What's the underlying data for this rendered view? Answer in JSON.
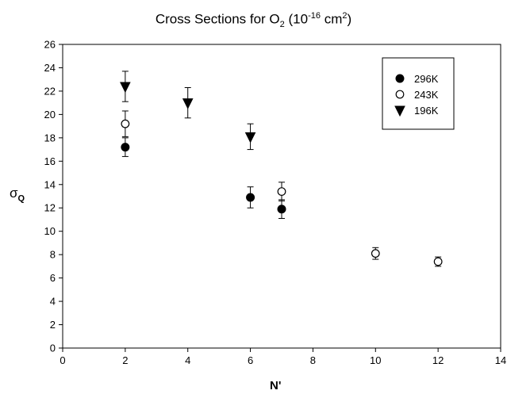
{
  "chart_data": {
    "type": "scatter",
    "title": {
      "main": "Cross Sections for O",
      "main_sub": "2",
      "paren_open": " (10",
      "exp": "-16",
      "unit": " cm",
      "unit_exp": "2",
      "paren_close": ")"
    },
    "xlabel": "N'",
    "ylabel": {
      "main": "σ",
      "sub": "Q"
    },
    "xlim": [
      0,
      14
    ],
    "ylim": [
      0,
      26
    ],
    "xticks": [
      0,
      2,
      4,
      6,
      8,
      10,
      12,
      14
    ],
    "yticks": [
      0,
      2,
      4,
      6,
      8,
      10,
      12,
      14,
      16,
      18,
      20,
      22,
      24,
      26
    ],
    "grid": false,
    "legend_position": "top-right",
    "series": [
      {
        "name": "296K",
        "marker": "filled-circle",
        "points": [
          {
            "x": 2,
            "y": 17.2,
            "err": 0.8
          },
          {
            "x": 6,
            "y": 12.9,
            "err": 0.9
          },
          {
            "x": 7,
            "y": 11.9,
            "err": 0.8
          }
        ]
      },
      {
        "name": "243K",
        "marker": "open-circle",
        "points": [
          {
            "x": 2,
            "y": 19.2,
            "err": 1.1
          },
          {
            "x": 7,
            "y": 13.4,
            "err": 0.8
          },
          {
            "x": 10,
            "y": 8.1,
            "err": 0.5
          },
          {
            "x": 12,
            "y": 7.4,
            "err": 0.4
          }
        ]
      },
      {
        "name": "196K",
        "marker": "filled-triangle-down",
        "points": [
          {
            "x": 2,
            "y": 22.4,
            "err": 1.3
          },
          {
            "x": 4,
            "y": 21.0,
            "err": 1.3
          },
          {
            "x": 6,
            "y": 18.1,
            "err": 1.1
          }
        ]
      }
    ]
  }
}
